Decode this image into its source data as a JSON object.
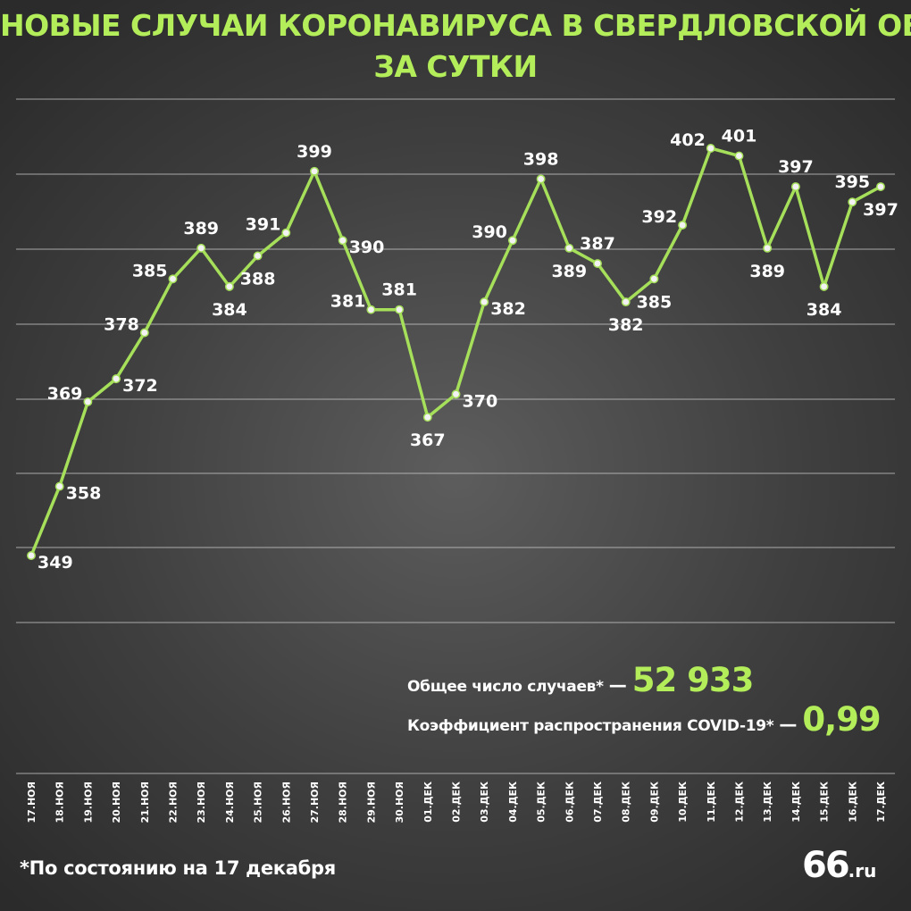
{
  "chart_data": {
    "type": "line",
    "title": "Новые случаи коронавируса в Свердловской области за сутки",
    "title_lines": [
      "Новые случаи коронавируса в Свердловской области",
      "за сутки"
    ],
    "categories": [
      "17.ноя",
      "18.ноя",
      "19.ноя",
      "20.ноя",
      "21.ноя",
      "22.ноя",
      "23.ноя",
      "24.ноя",
      "25.ноя",
      "26.ноя",
      "27.ноя",
      "28.ноя",
      "29.ноя",
      "30.ноя",
      "01.дек",
      "02.дек",
      "03.дек",
      "04.дек",
      "05.дек",
      "06.дек",
      "07.дек",
      "08.дек",
      "09.дек",
      "10.дек",
      "11.дек",
      "12.дек",
      "13.дек",
      "14.дек",
      "15.дек",
      "16.дек",
      "17.дек"
    ],
    "values": [
      349,
      358,
      369,
      372,
      378,
      385,
      389,
      384,
      388,
      391,
      399,
      390,
      381,
      381,
      367,
      370,
      382,
      390,
      398,
      389,
      387,
      382,
      385,
      392,
      402,
      401,
      389,
      397,
      384,
      395,
      397
    ],
    "label_position": [
      "right",
      "right",
      "left",
      "right",
      "left",
      "left",
      "above",
      "below",
      "below",
      "left",
      "above",
      "right",
      "left",
      "above",
      "below",
      "right",
      "right",
      "left",
      "above",
      "below",
      "above",
      "below",
      "below",
      "left",
      "left",
      "above",
      "below",
      "above",
      "below",
      "above",
      "below"
    ],
    "ylim": [
      340,
      407
    ],
    "xlabel": "",
    "ylabel": "",
    "grid": true,
    "line_color": "#a6e05a",
    "marker_fill": "#f2f2f2"
  },
  "stats": {
    "total": {
      "label": "Общее число случаев*",
      "dash": "—",
      "value": "52 933"
    },
    "r": {
      "label": "Коэффициент распространения COVID-19*",
      "dash": "—",
      "value": "0,99"
    }
  },
  "footnote": "*По состоянию на 17 декабря",
  "logo": {
    "number": "66",
    "domain": ".ru"
  },
  "colors": {
    "accent": "#b3ee5a",
    "text": "#ffffff"
  }
}
